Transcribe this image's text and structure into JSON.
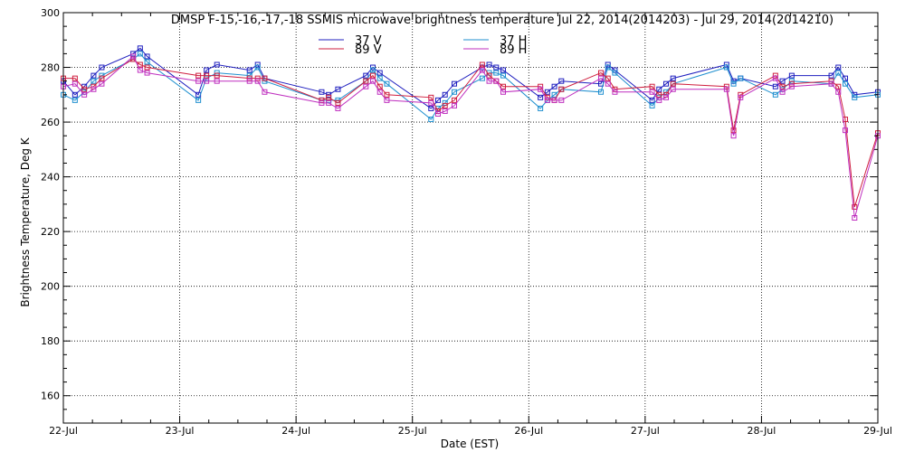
{
  "chart_data": {
    "type": "line",
    "title": "DMSP F-15,-16,-17,-18 SSMIS microwave brightness temperature Jul 22, 2014(2014203) - Jul 29, 2014(2014210)",
    "xlabel": "Date (EST)",
    "ylabel": "Brightness Temperature, Deg K",
    "x_range": [
      "22-Jul",
      "29-Jul"
    ],
    "xticks": [
      "22-Jul",
      "23-Jul",
      "24-Jul",
      "25-Jul",
      "26-Jul",
      "27-Jul",
      "28-Jul",
      "29-Jul"
    ],
    "ylim": [
      150,
      300
    ],
    "yticks": [
      160,
      180,
      200,
      220,
      240,
      260,
      280,
      300
    ],
    "grid": true,
    "legend_position": "top-center",
    "series": [
      {
        "name": "37 V",
        "color": "#1f1fbf",
        "points": [
          [
            22.0,
            275
          ],
          [
            22.1,
            270
          ],
          [
            22.18,
            273
          ],
          [
            22.26,
            277
          ],
          [
            22.33,
            280
          ],
          [
            22.6,
            285
          ],
          [
            22.66,
            287
          ],
          [
            22.72,
            284
          ],
          [
            23.16,
            270
          ],
          [
            23.23,
            279
          ],
          [
            23.32,
            281
          ],
          [
            23.6,
            279
          ],
          [
            23.67,
            281
          ],
          [
            23.73,
            276
          ],
          [
            24.22,
            271
          ],
          [
            24.28,
            270
          ],
          [
            24.36,
            272
          ],
          [
            24.6,
            277
          ],
          [
            24.66,
            280
          ],
          [
            24.72,
            278
          ],
          [
            25.16,
            265
          ],
          [
            25.22,
            268
          ],
          [
            25.28,
            270
          ],
          [
            25.36,
            274
          ],
          [
            25.6,
            280
          ],
          [
            25.66,
            281
          ],
          [
            25.72,
            280
          ],
          [
            25.78,
            279
          ],
          [
            26.1,
            269
          ],
          [
            26.16,
            271
          ],
          [
            26.22,
            273
          ],
          [
            26.28,
            275
          ],
          [
            26.62,
            274
          ],
          [
            26.68,
            281
          ],
          [
            26.74,
            279
          ],
          [
            27.06,
            268
          ],
          [
            27.12,
            272
          ],
          [
            27.18,
            274
          ],
          [
            27.24,
            276
          ],
          [
            27.7,
            281
          ],
          [
            27.76,
            275
          ],
          [
            27.82,
            276
          ],
          [
            28.12,
            273
          ],
          [
            28.18,
            275
          ],
          [
            28.26,
            277
          ],
          [
            28.6,
            277
          ],
          [
            28.66,
            280
          ],
          [
            28.72,
            276
          ],
          [
            28.8,
            270
          ],
          [
            29.0,
            271
          ]
        ]
      },
      {
        "name": "37 H",
        "color": "#1f8fcf",
        "points": [
          [
            22.0,
            270
          ],
          [
            22.1,
            268
          ],
          [
            22.18,
            271
          ],
          [
            22.26,
            275
          ],
          [
            22.33,
            277
          ],
          [
            22.6,
            283
          ],
          [
            22.66,
            285
          ],
          [
            22.72,
            282
          ],
          [
            23.16,
            268
          ],
          [
            23.23,
            276
          ],
          [
            23.32,
            278
          ],
          [
            23.6,
            277
          ],
          [
            23.67,
            280
          ],
          [
            23.73,
            275
          ],
          [
            24.22,
            268
          ],
          [
            24.28,
            268
          ],
          [
            24.36,
            268
          ],
          [
            24.6,
            275
          ],
          [
            24.66,
            279
          ],
          [
            24.72,
            276
          ],
          [
            24.78,
            274
          ],
          [
            25.16,
            261
          ],
          [
            25.22,
            265
          ],
          [
            25.28,
            267
          ],
          [
            25.36,
            271
          ],
          [
            25.6,
            276
          ],
          [
            25.66,
            278
          ],
          [
            25.72,
            278
          ],
          [
            25.78,
            277
          ],
          [
            26.1,
            265
          ],
          [
            26.16,
            268
          ],
          [
            26.22,
            270
          ],
          [
            26.28,
            272
          ],
          [
            26.62,
            271
          ],
          [
            26.68,
            280
          ],
          [
            26.74,
            278
          ],
          [
            27.06,
            266
          ],
          [
            27.12,
            269
          ],
          [
            27.18,
            271
          ],
          [
            27.24,
            274
          ],
          [
            27.7,
            280
          ],
          [
            27.76,
            274
          ],
          [
            27.82,
            276
          ],
          [
            28.12,
            270
          ],
          [
            28.18,
            272
          ],
          [
            28.26,
            275
          ],
          [
            28.6,
            274
          ],
          [
            28.66,
            278
          ],
          [
            28.72,
            274
          ],
          [
            28.8,
            269
          ],
          [
            29.0,
            270
          ]
        ]
      },
      {
        "name": "89 V",
        "color": "#cf1f3f",
        "points": [
          [
            22.0,
            276
          ],
          [
            22.1,
            276
          ],
          [
            22.18,
            272
          ],
          [
            22.26,
            273
          ],
          [
            22.33,
            276
          ],
          [
            22.6,
            283
          ],
          [
            22.66,
            281
          ],
          [
            22.72,
            280
          ],
          [
            23.16,
            277
          ],
          [
            23.23,
            277
          ],
          [
            23.32,
            277
          ],
          [
            23.6,
            276
          ],
          [
            23.67,
            276
          ],
          [
            23.73,
            276
          ],
          [
            24.22,
            268
          ],
          [
            24.28,
            269
          ],
          [
            24.36,
            267
          ],
          [
            24.6,
            275
          ],
          [
            24.66,
            277
          ],
          [
            24.72,
            273
          ],
          [
            24.78,
            270
          ],
          [
            25.16,
            269
          ],
          [
            25.22,
            264
          ],
          [
            25.28,
            266
          ],
          [
            25.36,
            268
          ],
          [
            25.6,
            281
          ],
          [
            25.66,
            277
          ],
          [
            25.72,
            275
          ],
          [
            25.78,
            273
          ],
          [
            26.1,
            273
          ],
          [
            26.16,
            269
          ],
          [
            26.22,
            268
          ],
          [
            26.28,
            272
          ],
          [
            26.62,
            278
          ],
          [
            26.68,
            276
          ],
          [
            26.74,
            272
          ],
          [
            27.06,
            273
          ],
          [
            27.12,
            270
          ],
          [
            27.18,
            270
          ],
          [
            27.24,
            274
          ],
          [
            27.7,
            273
          ],
          [
            27.76,
            257
          ],
          [
            27.82,
            270
          ],
          [
            28.12,
            277
          ],
          [
            28.18,
            273
          ],
          [
            28.26,
            274
          ],
          [
            28.6,
            275
          ],
          [
            28.66,
            273
          ],
          [
            28.72,
            261
          ],
          [
            28.8,
            229
          ],
          [
            29.0,
            256
          ]
        ]
      },
      {
        "name": "89 H",
        "color": "#bf2fbf",
        "points": [
          [
            22.0,
            273
          ],
          [
            22.1,
            274
          ],
          [
            22.18,
            270
          ],
          [
            22.26,
            272
          ],
          [
            22.33,
            274
          ],
          [
            22.6,
            284
          ],
          [
            22.66,
            279
          ],
          [
            22.72,
            278
          ],
          [
            23.16,
            275
          ],
          [
            23.23,
            275
          ],
          [
            23.32,
            275
          ],
          [
            23.6,
            275
          ],
          [
            23.67,
            275
          ],
          [
            23.73,
            271
          ],
          [
            24.22,
            267
          ],
          [
            24.28,
            267
          ],
          [
            24.36,
            265
          ],
          [
            24.6,
            273
          ],
          [
            24.66,
            275
          ],
          [
            24.72,
            271
          ],
          [
            24.78,
            268
          ],
          [
            25.16,
            267
          ],
          [
            25.22,
            263
          ],
          [
            25.28,
            264
          ],
          [
            25.36,
            266
          ],
          [
            25.6,
            279
          ],
          [
            25.66,
            275
          ],
          [
            25.72,
            275
          ],
          [
            25.78,
            271
          ],
          [
            26.1,
            272
          ],
          [
            26.16,
            268
          ],
          [
            26.22,
            268
          ],
          [
            26.28,
            268
          ],
          [
            26.62,
            276
          ],
          [
            26.68,
            274
          ],
          [
            26.74,
            271
          ],
          [
            27.06,
            271
          ],
          [
            27.12,
            268
          ],
          [
            27.18,
            269
          ],
          [
            27.24,
            272
          ],
          [
            27.7,
            272
          ],
          [
            27.76,
            255
          ],
          [
            27.82,
            269
          ],
          [
            28.12,
            276
          ],
          [
            28.18,
            271
          ],
          [
            28.26,
            273
          ],
          [
            28.6,
            274
          ],
          [
            28.66,
            271
          ],
          [
            28.72,
            257
          ],
          [
            28.8,
            225
          ],
          [
            29.0,
            255
          ]
        ]
      }
    ]
  }
}
